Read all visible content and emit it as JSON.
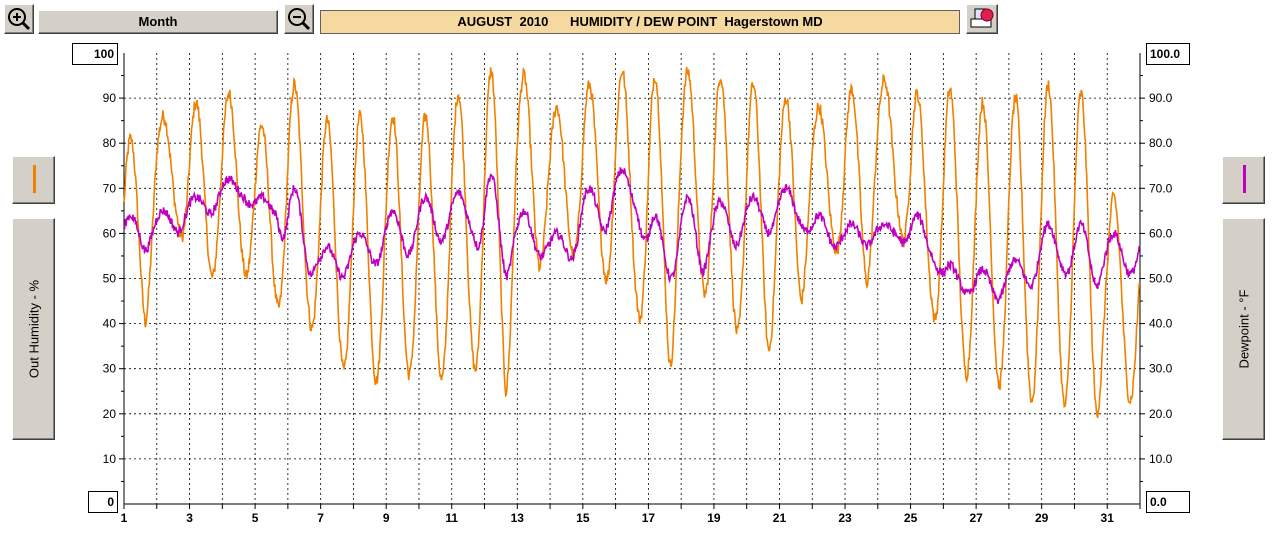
{
  "toolbar": {
    "range_label": "Month",
    "title": "AUGUST  2010      HUMIDITY / DEW POINT  Hagerstown MD"
  },
  "left_axis": {
    "label": "Out Humidity - %",
    "top_value": "100",
    "bottom_value": "0",
    "color": "#f08000"
  },
  "right_axis": {
    "label": "Dewpoint - °F",
    "top_value": "100.0",
    "bottom_value": "0.0",
    "color": "#c000c0"
  },
  "chart_data": {
    "type": "line",
    "title": "AUGUST  2010      HUMIDITY / DEW POINT  Hagerstown MD",
    "xlim": [
      1,
      32
    ],
    "ylim": [
      0,
      100
    ],
    "grid": true,
    "x_ticks": [
      1,
      3,
      5,
      7,
      9,
      11,
      13,
      15,
      17,
      19,
      21,
      23,
      25,
      27,
      29,
      31
    ],
    "y_ticks_left": [
      "10",
      "20",
      "30",
      "40",
      "50",
      "60",
      "70",
      "80",
      "90"
    ],
    "y_ticks_right": [
      "10.0",
      "20.0",
      "30.0",
      "40.0",
      "50.0",
      "60.0",
      "70.0",
      "80.0",
      "90.0"
    ],
    "series": [
      {
        "name": "Out Humidity - %",
        "axis": "left",
        "color": "#f08000",
        "daily_max": [
          81,
          86,
          89,
          91,
          84,
          93,
          85,
          86,
          86,
          86,
          91,
          96,
          95,
          88,
          93,
          96,
          95,
          96,
          95,
          93,
          90,
          88,
          92,
          94,
          91,
          92,
          89,
          90,
          93,
          91,
          68
        ],
        "daily_min": [
          39,
          62,
          50,
          52,
          44,
          41,
          30,
          27,
          29,
          27,
          31,
          23,
          52,
          56,
          51,
          44,
          29,
          48,
          39,
          33,
          44,
          58,
          48,
          63,
          44,
          29,
          27,
          23,
          22,
          20,
          23
        ]
      },
      {
        "name": "Dewpoint - °F",
        "axis": "right",
        "color": "#c000c0",
        "daily_max": [
          64,
          65,
          68,
          72,
          68,
          70,
          57,
          60,
          65,
          68,
          69,
          73,
          65,
          60,
          70,
          74,
          64,
          68,
          67,
          68,
          70,
          64,
          62,
          62,
          64,
          53,
          52,
          54,
          62,
          62,
          60
        ],
        "daily_min": [
          56,
          60,
          64,
          68,
          64,
          51,
          50,
          53,
          55,
          58,
          60,
          50,
          55,
          54,
          60,
          65,
          50,
          51,
          57,
          60,
          62,
          57,
          57,
          59,
          55,
          47,
          45,
          48,
          52,
          48,
          51
        ]
      }
    ]
  }
}
